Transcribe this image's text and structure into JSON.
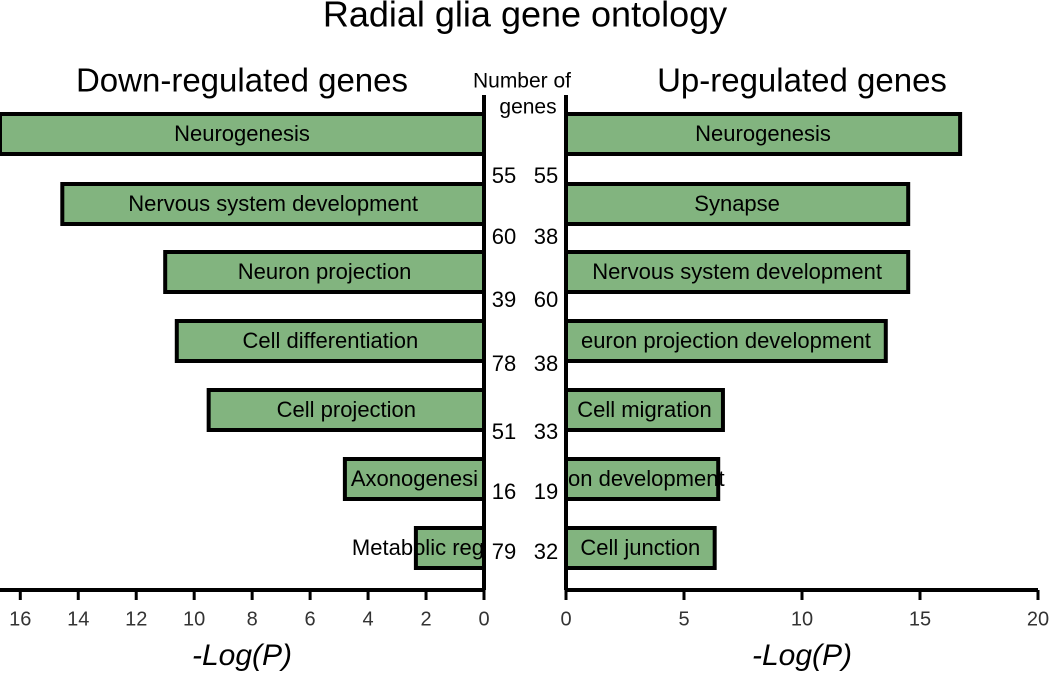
{
  "title": "Radial glia gene ontology",
  "gene_count_label": [
    "Number of",
    "genes"
  ],
  "chart_data": [
    {
      "type": "bar",
      "orientation": "horizontal",
      "direction": "reversed",
      "title": "Down-regulated genes",
      "categories": [
        "Neurogenesis",
        "Nervous system development",
        "Neuron projection",
        "Cell differentiation",
        "Cell projection",
        "Axonogenesi",
        "Metabolic reg"
      ],
      "values": [
        16.7,
        14.55,
        11.0,
        10.6,
        9.5,
        4.8,
        2.35
      ],
      "gene_counts": [
        55,
        60,
        39,
        78,
        51,
        16,
        79
      ],
      "color": "#82b47f",
      "xlim": [
        0,
        16.7
      ],
      "xticks": [
        0,
        2,
        4,
        6,
        8,
        10,
        12,
        14,
        16
      ],
      "xlabel": "-Log(P)"
    },
    {
      "type": "bar",
      "orientation": "horizontal",
      "direction": "normal",
      "title": "Up-regulated genes",
      "categories": [
        "Neurogenesis",
        "Synapse",
        "Nervous system development",
        "euron projection development",
        "Cell migration",
        "on development",
        "Cell junction"
      ],
      "values": [
        16.7,
        14.5,
        14.5,
        13.55,
        6.65,
        6.45,
        6.3
      ],
      "gene_counts": [
        55,
        38,
        60,
        38,
        33,
        19,
        32
      ],
      "color": "#82b47f",
      "xlim": [
        0,
        20
      ],
      "xticks": [
        0,
        5,
        10,
        15,
        20
      ],
      "xlabel": "-Log(P)"
    }
  ]
}
